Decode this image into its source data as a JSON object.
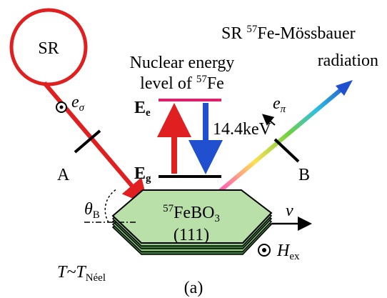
{
  "source": {
    "label": "SR"
  },
  "output": {
    "line1": {
      "pre": "SR ",
      "sup": "57",
      "post": "Fe-Mössbauer"
    },
    "line2": "radiation"
  },
  "levels": {
    "title1": "Nuclear energy",
    "title2": {
      "pre": "level of ",
      "sup": "57",
      "post": "Fe"
    },
    "excited": {
      "main": "E",
      "sub": "e"
    },
    "ground": {
      "main": "E",
      "sub": "g"
    },
    "energy": "14.4keV"
  },
  "polarization": {
    "incident": {
      "main": "e",
      "sub": "σ"
    },
    "outgoing": {
      "main": "e",
      "sub": "π"
    }
  },
  "slits": {
    "a": "A",
    "b": "B"
  },
  "angle": {
    "main": "θ",
    "sub": "B"
  },
  "crystal": {
    "formula": {
      "sup": "57",
      "main": "FeBO",
      "sub": "3"
    },
    "plane": "(111)"
  },
  "velocity": "v",
  "temperature": {
    "pre": "T~T",
    "sub": "Néel"
  },
  "field": {
    "main": "H",
    "sub": "ex"
  },
  "caption": "(a)"
}
